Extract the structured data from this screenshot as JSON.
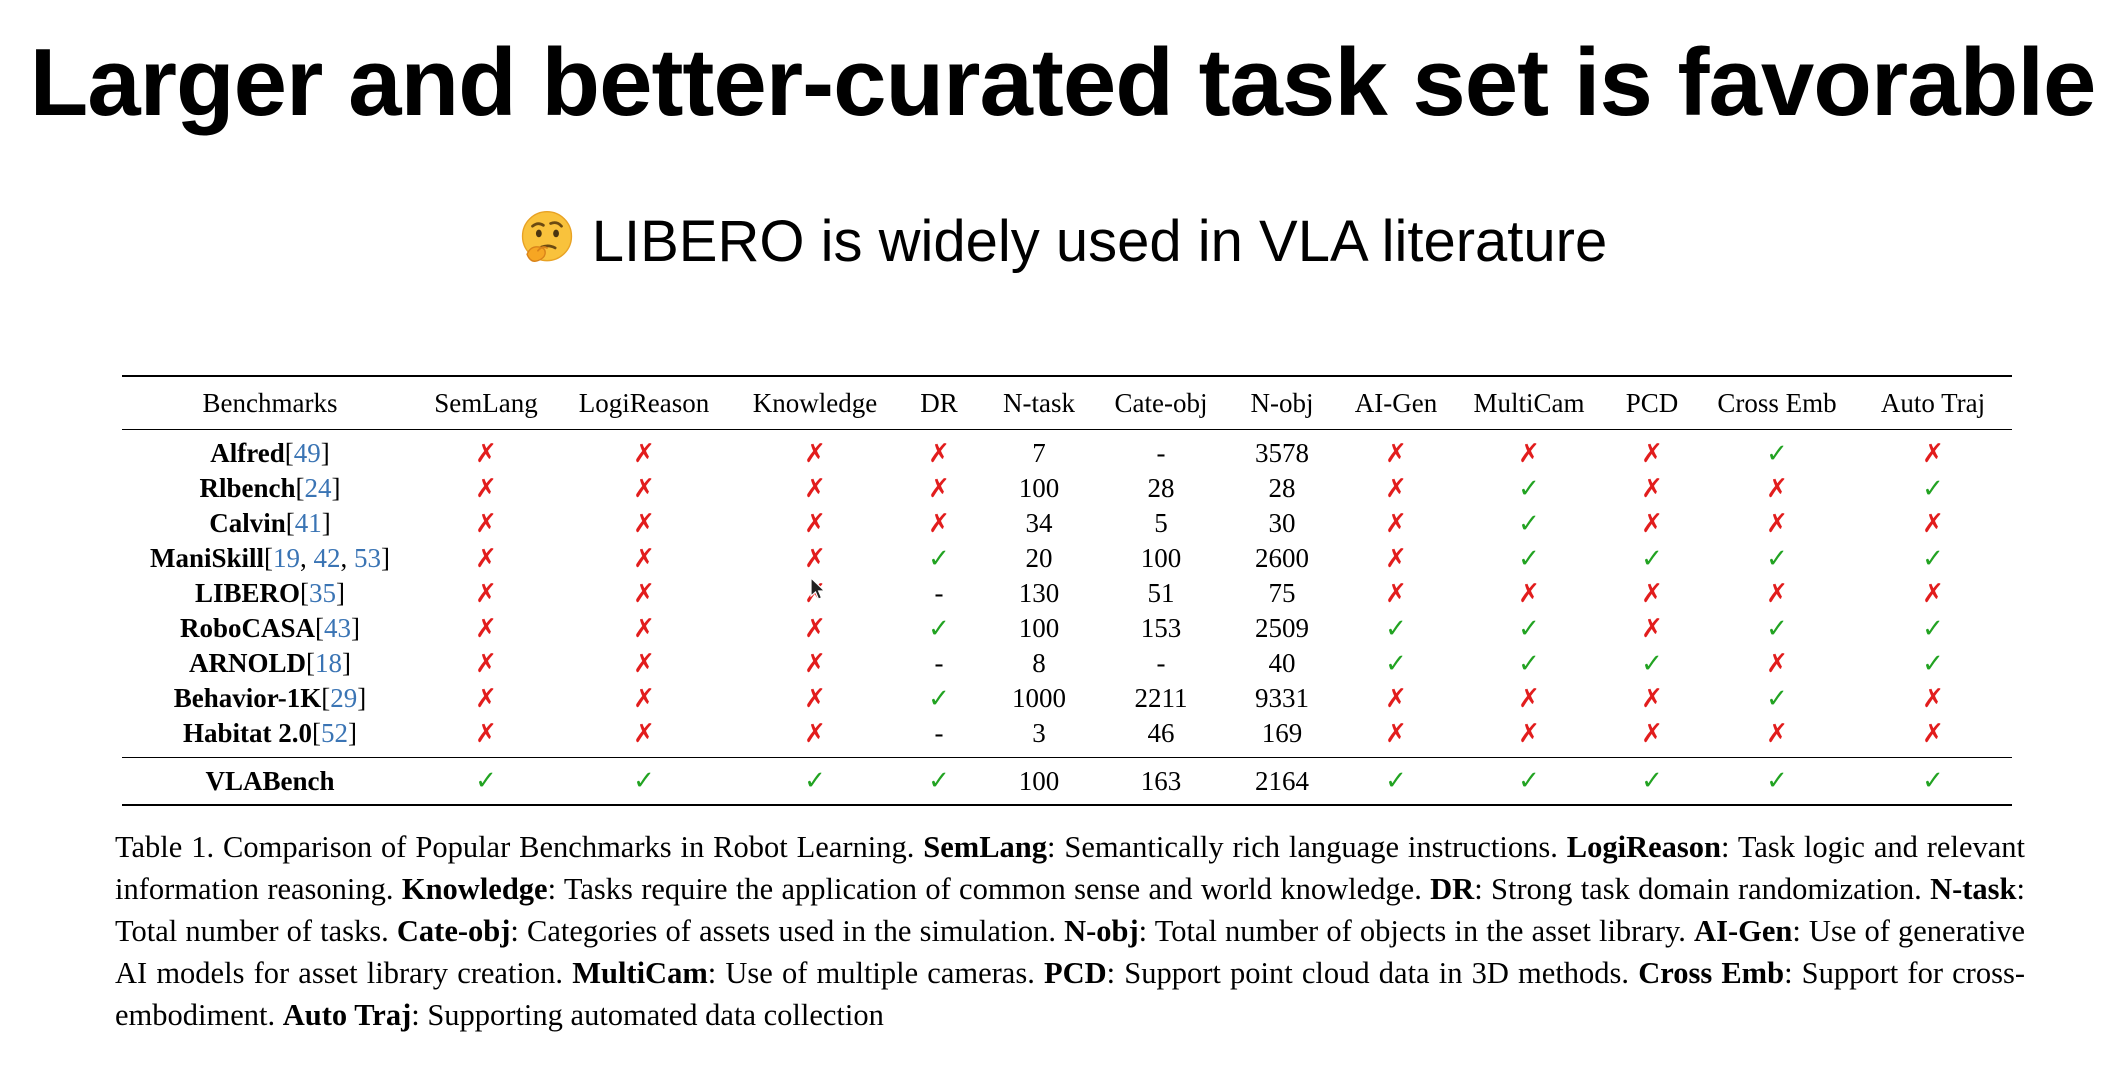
{
  "slide": {
    "title": "Larger and better-curated task set is favorable",
    "subtitle": "LIBERO is widely used in VLA literature",
    "subtitle_icon": "thinking-face-emoji"
  },
  "table": {
    "headers": [
      "Benchmarks",
      "SemLang",
      "LogiReason",
      "Knowledge",
      "DR",
      "N-task",
      "Cate-obj",
      "N-obj",
      "AI-Gen",
      "MultiCam",
      "PCD",
      "Cross Emb",
      "Auto Traj"
    ],
    "rows": [
      {
        "name": "Alfred",
        "refs": [
          "49"
        ],
        "cells": [
          "✗",
          "✗",
          "✗",
          "✗",
          "7",
          "-",
          "3578",
          "✗",
          "✗",
          "✗",
          "✓",
          "✗"
        ]
      },
      {
        "name": "Rlbench",
        "refs": [
          "24"
        ],
        "cells": [
          "✗",
          "✗",
          "✗",
          "✗",
          "100",
          "28",
          "28",
          "✗",
          "✓",
          "✗",
          "✗",
          "✓"
        ]
      },
      {
        "name": "Calvin",
        "refs": [
          "41"
        ],
        "cells": [
          "✗",
          "✗",
          "✗",
          "✗",
          "34",
          "5",
          "30",
          "✗",
          "✓",
          "✗",
          "✗",
          "✗"
        ]
      },
      {
        "name": "ManiSkill",
        "refs": [
          "19",
          "42",
          "53"
        ],
        "cells": [
          "✗",
          "✗",
          "✗",
          "✓",
          "20",
          "100",
          "2600",
          "✗",
          "✓",
          "✓",
          "✓",
          "✓"
        ]
      },
      {
        "name": "LIBERO",
        "refs": [
          "35"
        ],
        "cells": [
          "✗",
          "✗",
          "✗",
          "-",
          "130",
          "51",
          "75",
          "✗",
          "✗",
          "✗",
          "✗",
          "✗"
        ]
      },
      {
        "name": "RoboCASA",
        "refs": [
          "43"
        ],
        "cells": [
          "✗",
          "✗",
          "✗",
          "✓",
          "100",
          "153",
          "2509",
          "✓",
          "✓",
          "✗",
          "✓",
          "✓"
        ]
      },
      {
        "name": "ARNOLD",
        "refs": [
          "18"
        ],
        "cells": [
          "✗",
          "✗",
          "✗",
          "-",
          "8",
          "-",
          "40",
          "✓",
          "✓",
          "✓",
          "✗",
          "✓"
        ]
      },
      {
        "name": "Behavior-1K",
        "refs": [
          "29"
        ],
        "cells": [
          "✗",
          "✗",
          "✗",
          "✓",
          "1000",
          "2211",
          "9331",
          "✗",
          "✗",
          "✗",
          "✓",
          "✗"
        ]
      },
      {
        "name": "Habitat 2.0",
        "refs": [
          "52"
        ],
        "cells": [
          "✗",
          "✗",
          "✗",
          "-",
          "3",
          "46",
          "169",
          "✗",
          "✗",
          "✗",
          "✗",
          "✗"
        ]
      }
    ],
    "highlight_row": {
      "name": "VLABench",
      "refs": [],
      "cells": [
        "✓",
        "✓",
        "✓",
        "✓",
        "100",
        "163",
        "2164",
        "✓",
        "✓",
        "✓",
        "✓",
        "✓"
      ]
    }
  },
  "caption": [
    {
      "t": "Table 1. Comparison of Popular Benchmarks in Robot Learning. "
    },
    {
      "t": "SemLang",
      "b": true
    },
    {
      "t": ": Semantically rich language instructions. "
    },
    {
      "t": "LogiReason",
      "b": true
    },
    {
      "t": ": Task logic and relevant information reasoning. "
    },
    {
      "t": "Knowledge",
      "b": true
    },
    {
      "t": ": Tasks require the application of common sense and world knowledge. "
    },
    {
      "t": "DR",
      "b": true
    },
    {
      "t": ": Strong task domain randomization. "
    },
    {
      "t": "N-task",
      "b": true
    },
    {
      "t": ": Total number of tasks. "
    },
    {
      "t": "Cate-obj",
      "b": true
    },
    {
      "t": ": Categories of assets used in the simulation. "
    },
    {
      "t": "N-obj",
      "b": true
    },
    {
      "t": ": Total number of objects in the asset library. "
    },
    {
      "t": "AI-Gen",
      "b": true
    },
    {
      "t": ": Use of generative AI models for asset library creation. "
    },
    {
      "t": "MultiCam",
      "b": true
    },
    {
      "t": ": Use of multiple cameras. "
    },
    {
      "t": "PCD",
      "b": true
    },
    {
      "t": ": Support point cloud data in 3D methods. "
    },
    {
      "t": "Cross Emb",
      "b": true
    },
    {
      "t": ": Support for cross-embodiment. "
    },
    {
      "t": "Auto Traj",
      "b": true
    },
    {
      "t": ": Supporting automated data collection"
    }
  ],
  "colors": {
    "cross": "#e21d1d",
    "check": "#22a322",
    "ref_link": "#3a74b4"
  }
}
